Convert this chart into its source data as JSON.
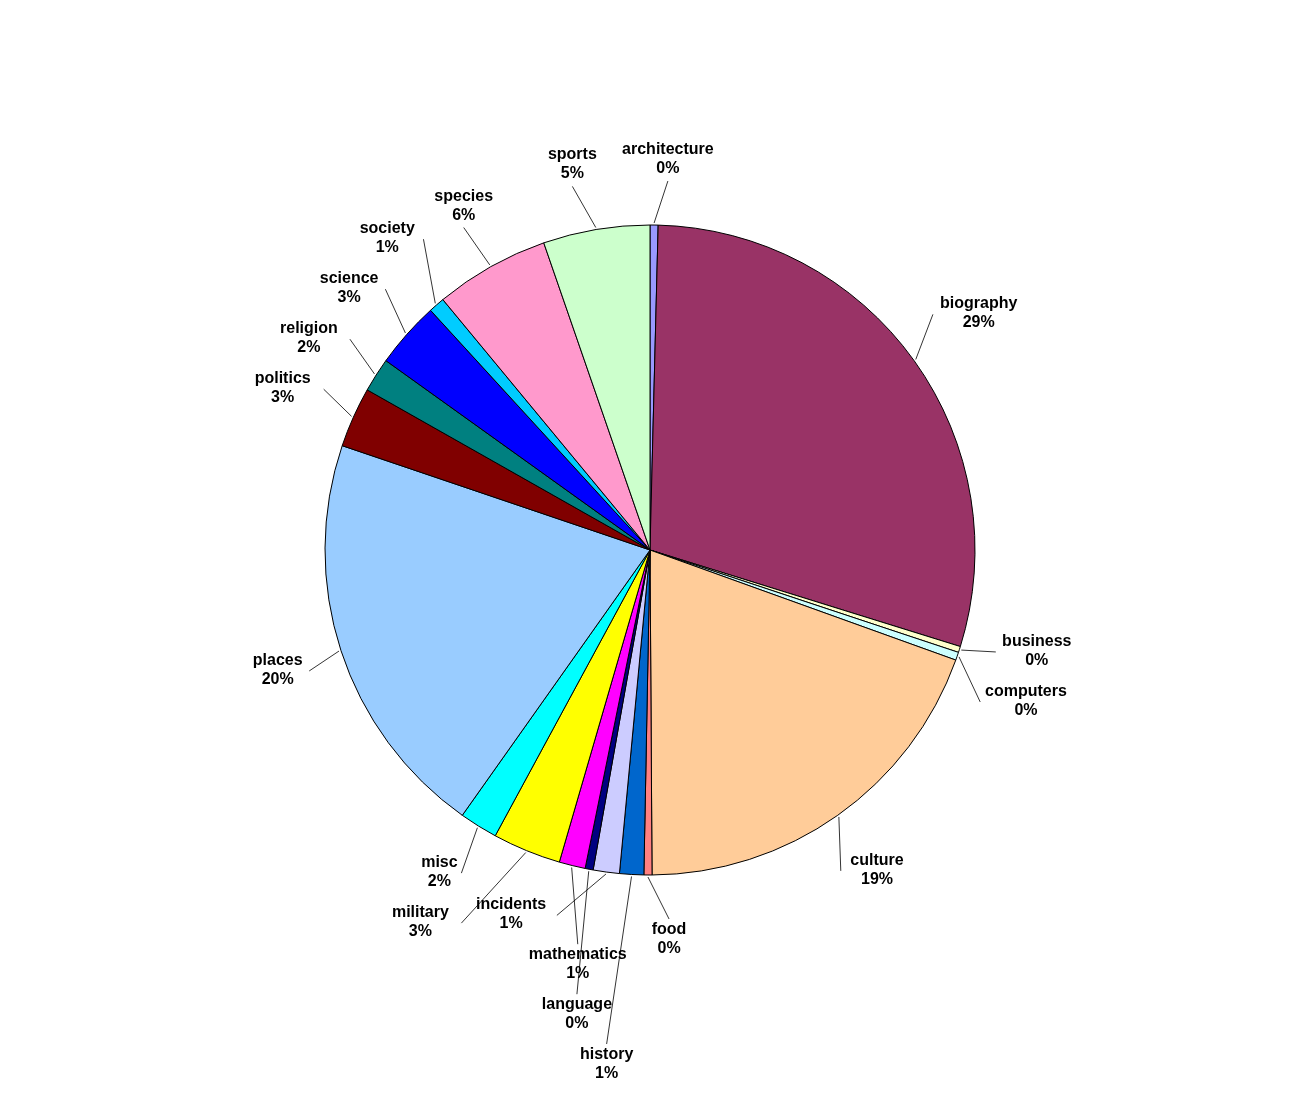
{
  "chart_data": {
    "type": "pie",
    "categories": [
      "architecture",
      "biography",
      "business",
      "computers",
      "culture",
      "food",
      "history",
      "incidents",
      "language",
      "mathematics",
      "military",
      "misc",
      "places",
      "politics",
      "religion",
      "science",
      "society",
      "species",
      "sports"
    ],
    "values": [
      0.4,
      29.4,
      0.3,
      0.4,
      19.4,
      0.4,
      1.2,
      1.3,
      0.4,
      1.3,
      3.4,
      1.9,
      20.4,
      3.0,
      1.7,
      3.3,
      0.8,
      5.7,
      5.3
    ],
    "value_labels": [
      "0%",
      "29%",
      "0%",
      "0%",
      "19%",
      "0%",
      "1%",
      "1%",
      "0%",
      "1%",
      "3%",
      "2%",
      "20%",
      "3%",
      "2%",
      "3%",
      "1%",
      "6%",
      "5%"
    ],
    "colors": [
      "#9999ff",
      "#993366",
      "#ffffcc",
      "#ccffff",
      "#ffcc99",
      "#ff8080",
      "#0066cc",
      "#ccccff",
      "#000080",
      "#ff00ff",
      "#ffff00",
      "#00ffff",
      "#99ccff",
      "#800000",
      "#008080",
      "#0000ff",
      "#00ccff",
      "#ff99cc",
      "#ccffcc"
    ],
    "legend": false
  }
}
